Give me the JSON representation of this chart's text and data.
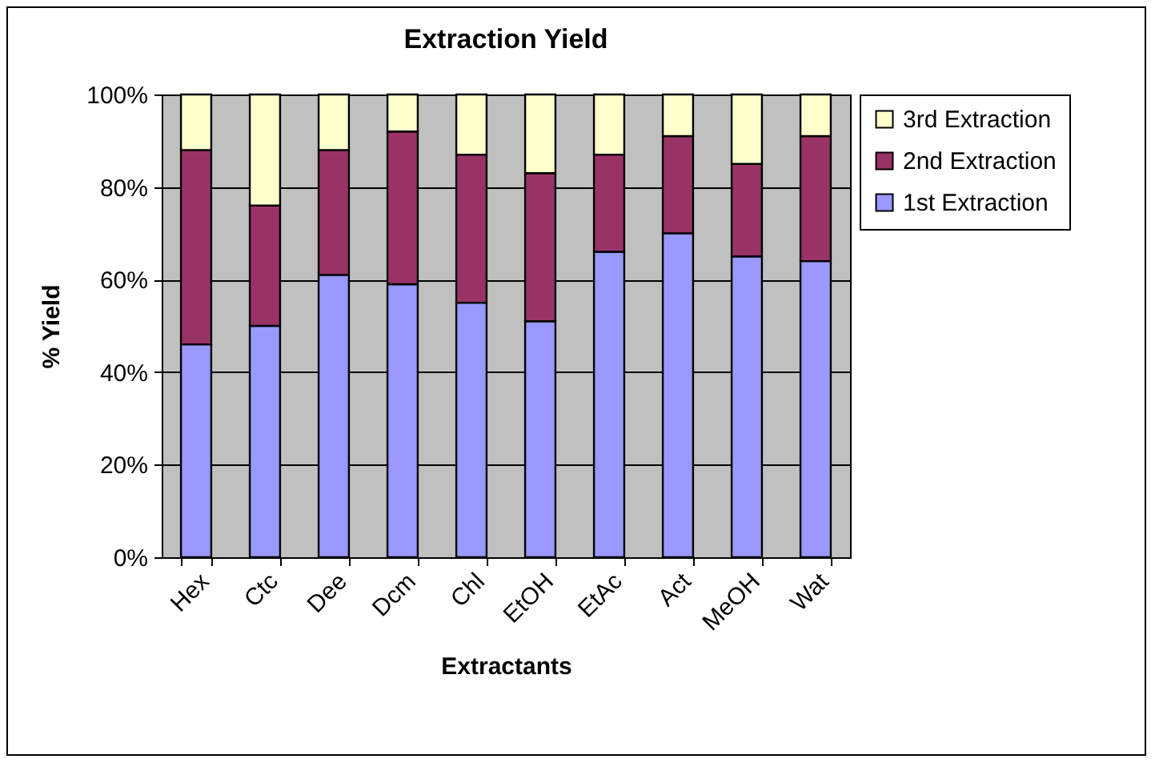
{
  "chart_data": {
    "type": "bar",
    "title": "Extraction Yield",
    "xlabel": "Extractants",
    "ylabel": "% Yield",
    "categories": [
      "Hex",
      "Ctc",
      "Dee",
      "Dcm",
      "Chl",
      "EtOH",
      "EtAc",
      "Act",
      "MeOH",
      "Wat"
    ],
    "stacked": true,
    "series": [
      {
        "name": "1st Extraction",
        "color": "#9999ff",
        "values": [
          46,
          50,
          61,
          59,
          55,
          51,
          66,
          70,
          65,
          64
        ]
      },
      {
        "name": "2nd Extraction",
        "color": "#993366",
        "values": [
          42,
          26,
          27,
          33,
          32,
          32,
          21,
          21,
          20,
          27
        ]
      },
      {
        "name": "3rd Extraction",
        "color": "#ffffcc",
        "values": [
          12,
          24,
          12,
          8,
          13,
          17,
          13,
          9,
          15,
          9
        ]
      }
    ],
    "ylim": [
      0,
      100
    ],
    "yticks": [
      {
        "value": 0,
        "label": "0%"
      },
      {
        "value": 20,
        "label": "20%"
      },
      {
        "value": 40,
        "label": "40%"
      },
      {
        "value": 60,
        "label": "60%"
      },
      {
        "value": 80,
        "label": "80%"
      },
      {
        "value": 100,
        "label": "100%"
      }
    ],
    "grid": "y",
    "legend": "right"
  }
}
